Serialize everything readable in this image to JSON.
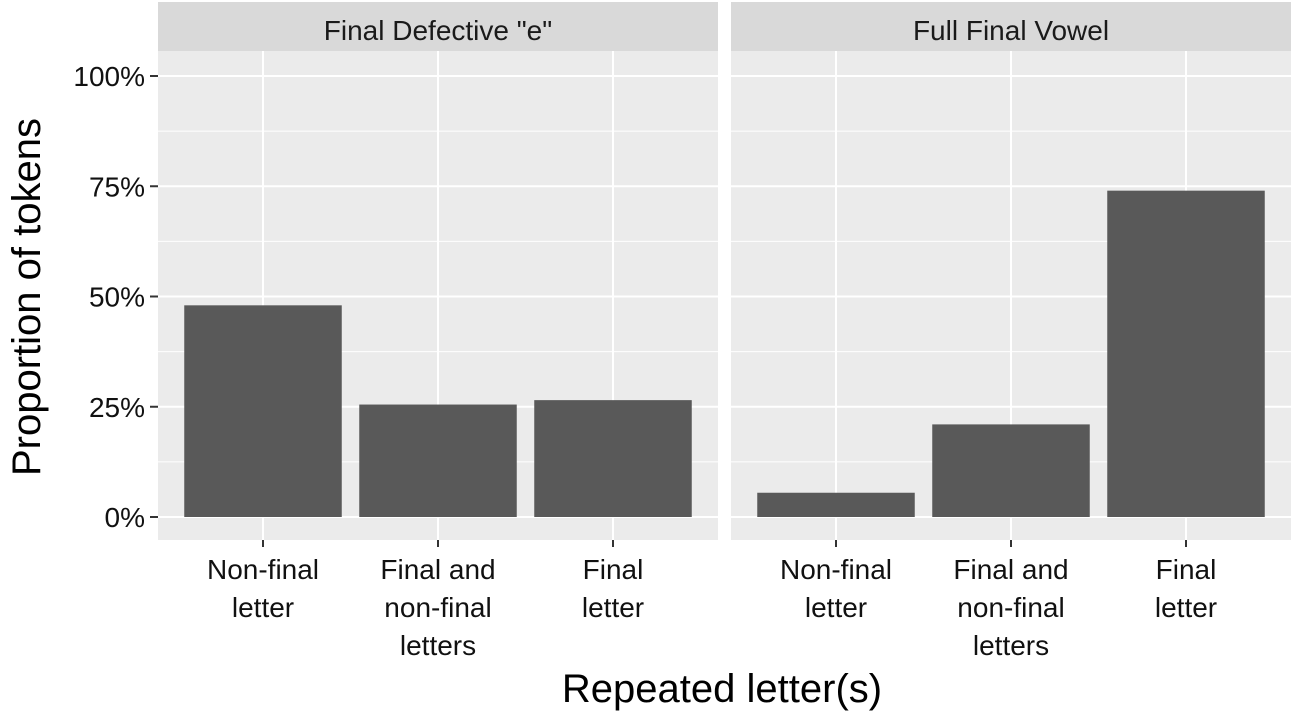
{
  "chart_data": {
    "type": "bar",
    "ylabel": "Proportion of tokens",
    "xlabel": "Repeated letter(s)",
    "y_ticks": [
      "0%",
      "25%",
      "50%",
      "75%",
      "100%"
    ],
    "ylim": [
      0,
      1.05
    ],
    "grid": true,
    "categories": [
      "Non-final letter",
      "Final and non-final letters",
      "Final letter"
    ],
    "category_lines": [
      [
        "Non-final",
        "letter"
      ],
      [
        "Final and",
        "non-final",
        "letters"
      ],
      [
        "Final",
        "letter"
      ]
    ],
    "facets": [
      {
        "title": "Final Defective \"e\"",
        "values": [
          0.48,
          0.255,
          0.265
        ]
      },
      {
        "title": "Full Final Vowel",
        "values": [
          0.055,
          0.21,
          0.74
        ]
      }
    ],
    "colors": {
      "bar": "#595959",
      "panel": "#ebebeb",
      "strip": "#d9d9d9",
      "grid": "#ffffff",
      "tick": "#333333"
    }
  }
}
